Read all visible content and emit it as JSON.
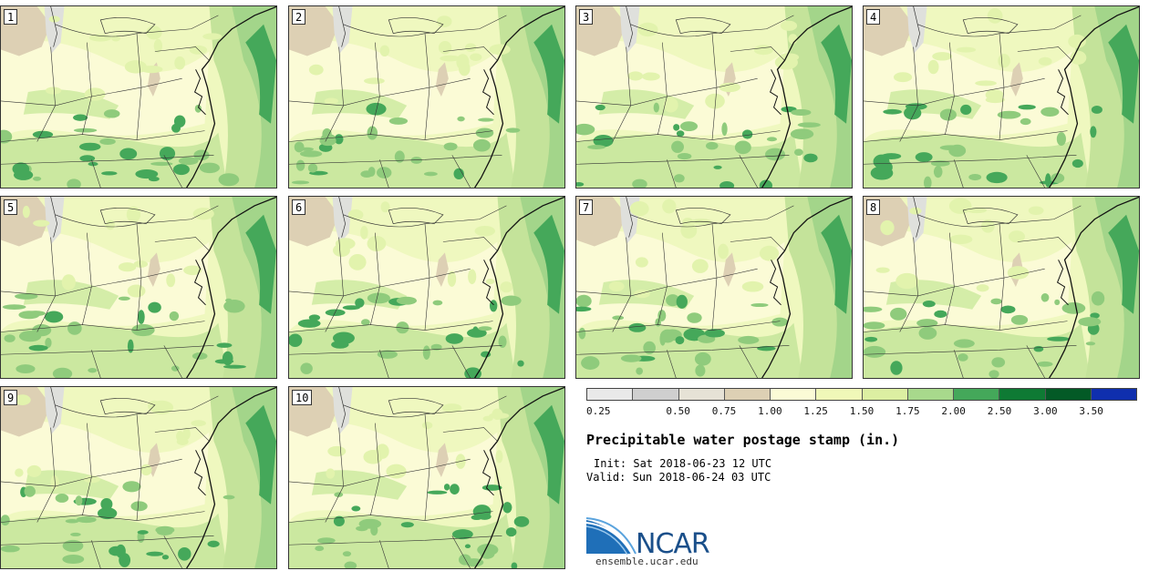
{
  "panels": [
    {
      "label": "1"
    },
    {
      "label": "2"
    },
    {
      "label": "3"
    },
    {
      "label": "4"
    },
    {
      "label": "5"
    },
    {
      "label": "6"
    },
    {
      "label": "7"
    },
    {
      "label": "8"
    },
    {
      "label": "9"
    },
    {
      "label": "10"
    }
  ],
  "colorbar": {
    "colors": [
      "#e9e9e9",
      "#cfcfcf",
      "#e6e2d6",
      "#ddd0b4",
      "#fbfbd6",
      "#f0f8b8",
      "#dcefa2",
      "#a8d98c",
      "#44a85a",
      "#0e7a34",
      "#035a26",
      "#0f2fae"
    ],
    "ticks": [
      "0.25",
      "0.50",
      "0.75",
      "1.00",
      "1.25",
      "1.50",
      "1.75",
      "2.00",
      "2.50",
      "3.00",
      "3.50"
    ]
  },
  "title": "Precipitable water postage stamp (in.)",
  "init": "Init: Sat 2018-06-23 12 UTC",
  "valid": "Valid: Sun 2018-06-24 03 UTC",
  "logo_text": "NCAR",
  "site": "ensemble.ucar.edu"
}
